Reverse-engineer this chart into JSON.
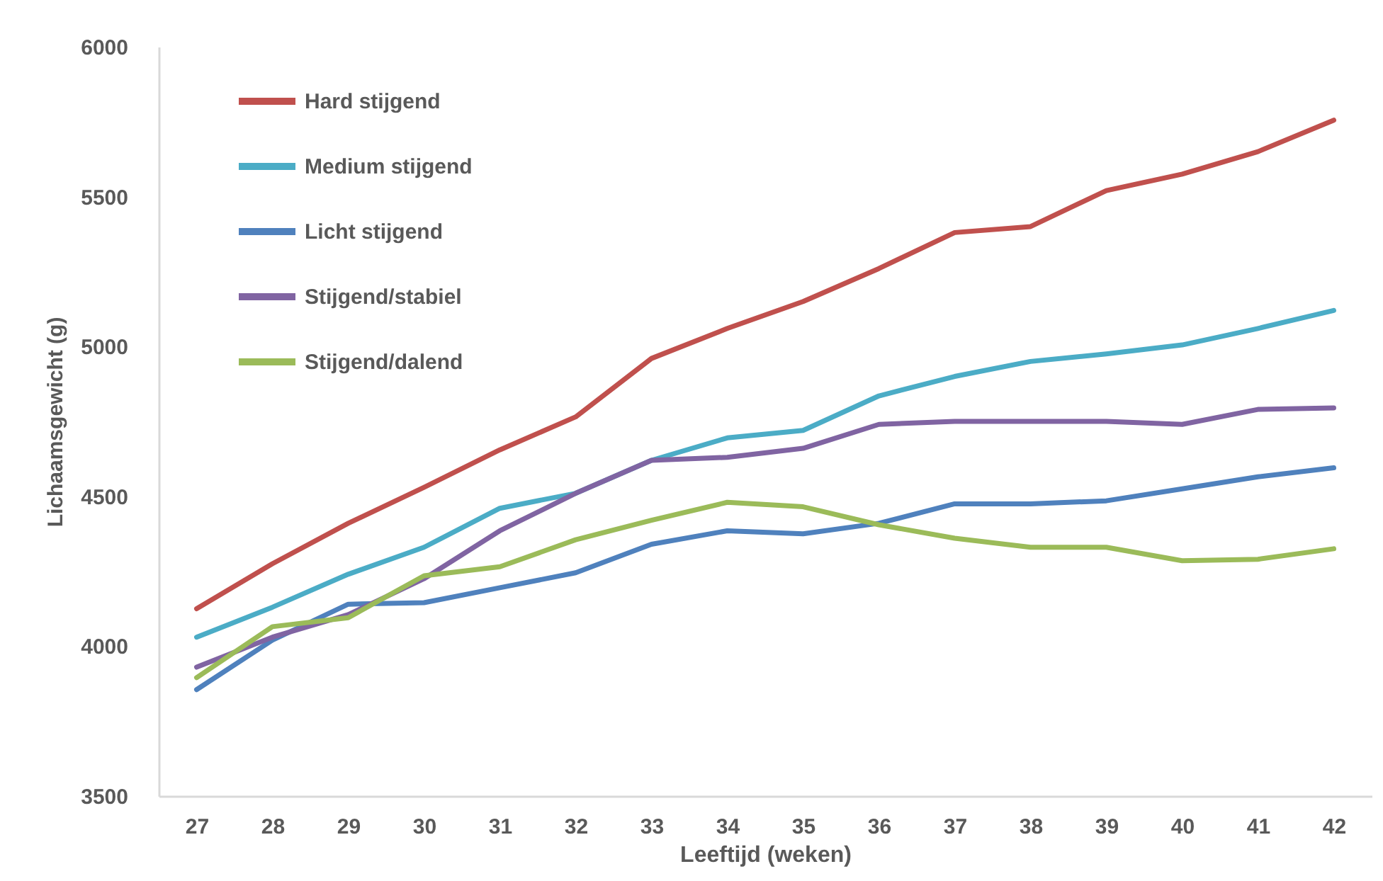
{
  "chart_data": {
    "type": "line",
    "xlabel": "Leeftijd (weken)",
    "ylabel": "Lichaamsgewicht (g)",
    "categories": [
      "27",
      "28",
      "29",
      "30",
      "31",
      "32",
      "33",
      "34",
      "35",
      "36",
      "37",
      "38",
      "39",
      "40",
      "41",
      "42"
    ],
    "series": [
      {
        "name": "Hard stijgend",
        "color": "#c0504d",
        "values": [
          4125,
          4275,
          4410,
          4530,
          4655,
          4765,
          4960,
          5060,
          5150,
          5260,
          5380,
          5400,
          5520,
          5575,
          5650,
          5755
        ]
      },
      {
        "name": "Medium stijgend",
        "color": "#4bacc6",
        "values": [
          4030,
          4130,
          4240,
          4330,
          4460,
          4510,
          4620,
          4695,
          4720,
          4835,
          4900,
          4950,
          4975,
          5005,
          5060,
          5120
        ]
      },
      {
        "name": "Licht stijgend",
        "color": "#4f81bd",
        "values": [
          3855,
          4020,
          4140,
          4145,
          4195,
          4245,
          4340,
          4385,
          4375,
          4410,
          4475,
          4475,
          4485,
          4525,
          4565,
          4595
        ]
      },
      {
        "name": "Stijgend/stabiel",
        "color": "#8064a2",
        "values": [
          3930,
          4030,
          4105,
          4225,
          4385,
          4510,
          4620,
          4630,
          4660,
          4740,
          4750,
          4750,
          4750,
          4740,
          4790,
          4795
        ]
      },
      {
        "name": "Stijgend/dalend",
        "color": "#9bbb59",
        "values": [
          3895,
          4065,
          4095,
          4235,
          4265,
          4355,
          4420,
          4480,
          4465,
          4405,
          4360,
          4330,
          4330,
          4285,
          4290,
          4325
        ]
      }
    ],
    "ylim": [
      3500,
      6000
    ],
    "yticks": [
      3500,
      4000,
      4500,
      5000,
      5500,
      6000
    ],
    "grid": false,
    "legend": "top left",
    "marker": "none",
    "line_style": "solid"
  }
}
